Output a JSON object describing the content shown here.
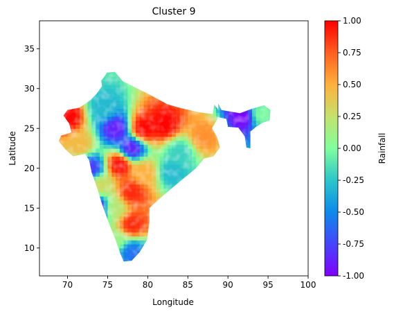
{
  "chart_data": {
    "type": "heatmap",
    "title": "Cluster 9",
    "xlabel": "Longitude",
    "ylabel": "Latitude",
    "xlim": [
      66.5,
      100
    ],
    "ylim": [
      6.5,
      38.5
    ],
    "xticks": [
      70,
      75,
      80,
      85,
      90,
      95,
      100
    ],
    "yticks": [
      10,
      15,
      20,
      25,
      30,
      35
    ],
    "grid": false,
    "colormap": "rainbow",
    "colorbar": {
      "label": "Rainfall",
      "range": [
        -1.0,
        1.0
      ],
      "ticks": [
        "-1.00",
        "-0.75",
        "-0.50",
        "-0.25",
        "0.00",
        "0.25",
        "0.50",
        "0.75",
        "1.00"
      ]
    },
    "region": "India (gridded rainfall anomaly)",
    "regional_pattern": [
      {
        "lon": 70,
        "lat": 26.5,
        "value": 1.0
      },
      {
        "lon": 71.5,
        "lat": 23,
        "value": 0.45
      },
      {
        "lon": 74.5,
        "lat": 27.5,
        "value": -0.3
      },
      {
        "lon": 76,
        "lat": 25,
        "value": -0.9
      },
      {
        "lon": 79.5,
        "lat": 25,
        "value": 1.0
      },
      {
        "lon": 82,
        "lat": 25.5,
        "value": 1.0
      },
      {
        "lon": 78,
        "lat": 22.5,
        "value": -0.9
      },
      {
        "lon": 84,
        "lat": 22,
        "value": -0.2
      },
      {
        "lon": 87,
        "lat": 24,
        "value": 0.6
      },
      {
        "lon": 76.5,
        "lat": 20.5,
        "value": 1.0
      },
      {
        "lon": 79.5,
        "lat": 19.5,
        "value": 0.5
      },
      {
        "lon": 83,
        "lat": 19.5,
        "value": -0.3
      },
      {
        "lon": 74,
        "lat": 18,
        "value": 0.3
      },
      {
        "lon": 78,
        "lat": 17,
        "value": 0.9
      },
      {
        "lon": 76,
        "lat": 15,
        "value": 0.2
      },
      {
        "lon": 78,
        "lat": 13,
        "value": 0.9
      },
      {
        "lon": 76,
        "lat": 11,
        "value": 0.1
      },
      {
        "lon": 78,
        "lat": 9.5,
        "value": -0.6
      },
      {
        "lon": 73.5,
        "lat": 15,
        "value": -1.0
      },
      {
        "lon": 73,
        "lat": 20,
        "value": -0.8
      },
      {
        "lon": 92,
        "lat": 26.5,
        "value": -1.0
      },
      {
        "lon": 94,
        "lat": 26.8,
        "value": 0.0
      }
    ]
  }
}
